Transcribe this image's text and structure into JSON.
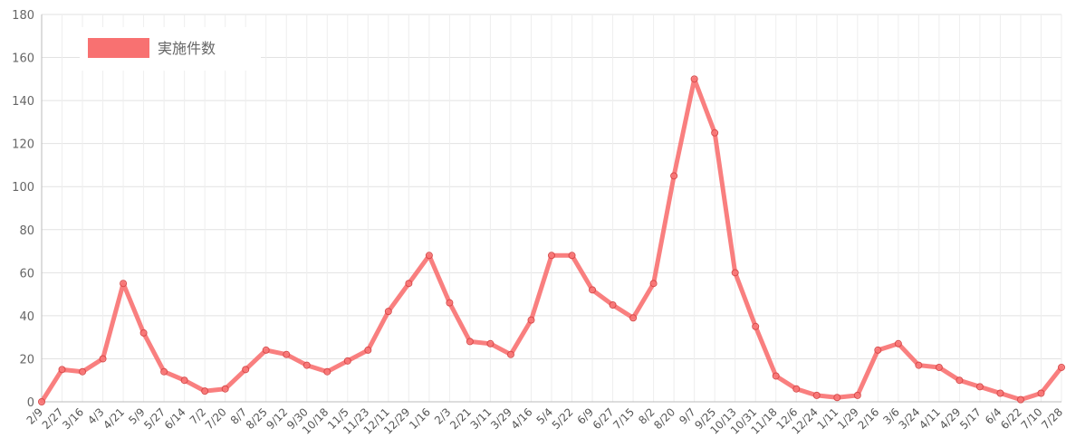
{
  "chart_data": {
    "type": "line",
    "title": "",
    "xlabel": "",
    "ylabel": "",
    "ylim": [
      0,
      180
    ],
    "yticks": [
      0,
      20,
      40,
      60,
      80,
      100,
      120,
      140,
      160,
      180
    ],
    "grid": true,
    "legend": "top-left",
    "color": "#f87171",
    "categories": [
      "2/9",
      "2/27",
      "3/16",
      "4/3",
      "4/21",
      "5/9",
      "5/27",
      "6/14",
      "7/2",
      "7/20",
      "8/7",
      "8/25",
      "9/12",
      "9/30",
      "10/18",
      "11/5",
      "11/23",
      "12/11",
      "12/29",
      "1/16",
      "2/3",
      "2/21",
      "3/11",
      "3/29",
      "4/16",
      "5/4",
      "5/22",
      "6/9",
      "6/27",
      "7/15",
      "8/2",
      "8/20",
      "9/7",
      "9/25",
      "10/13",
      "10/31",
      "11/18",
      "12/6",
      "12/24",
      "1/11",
      "1/29",
      "2/16",
      "3/6",
      "3/24",
      "4/11",
      "4/29",
      "5/17",
      "6/4",
      "6/22",
      "7/10",
      "7/28"
    ],
    "series": [
      {
        "name": "実施件数",
        "values": [
          0,
          15,
          14,
          20,
          55,
          32,
          14,
          10,
          5,
          6,
          15,
          24,
          22,
          17,
          14,
          19,
          24,
          42,
          55,
          68,
          46,
          28,
          27,
          22,
          38,
          68,
          68,
          52,
          45,
          39,
          55,
          105,
          150,
          125,
          60,
          35,
          12,
          6,
          3,
          2,
          3,
          24,
          27,
          17,
          16,
          10,
          7,
          4,
          1,
          4,
          16
        ]
      }
    ]
  }
}
